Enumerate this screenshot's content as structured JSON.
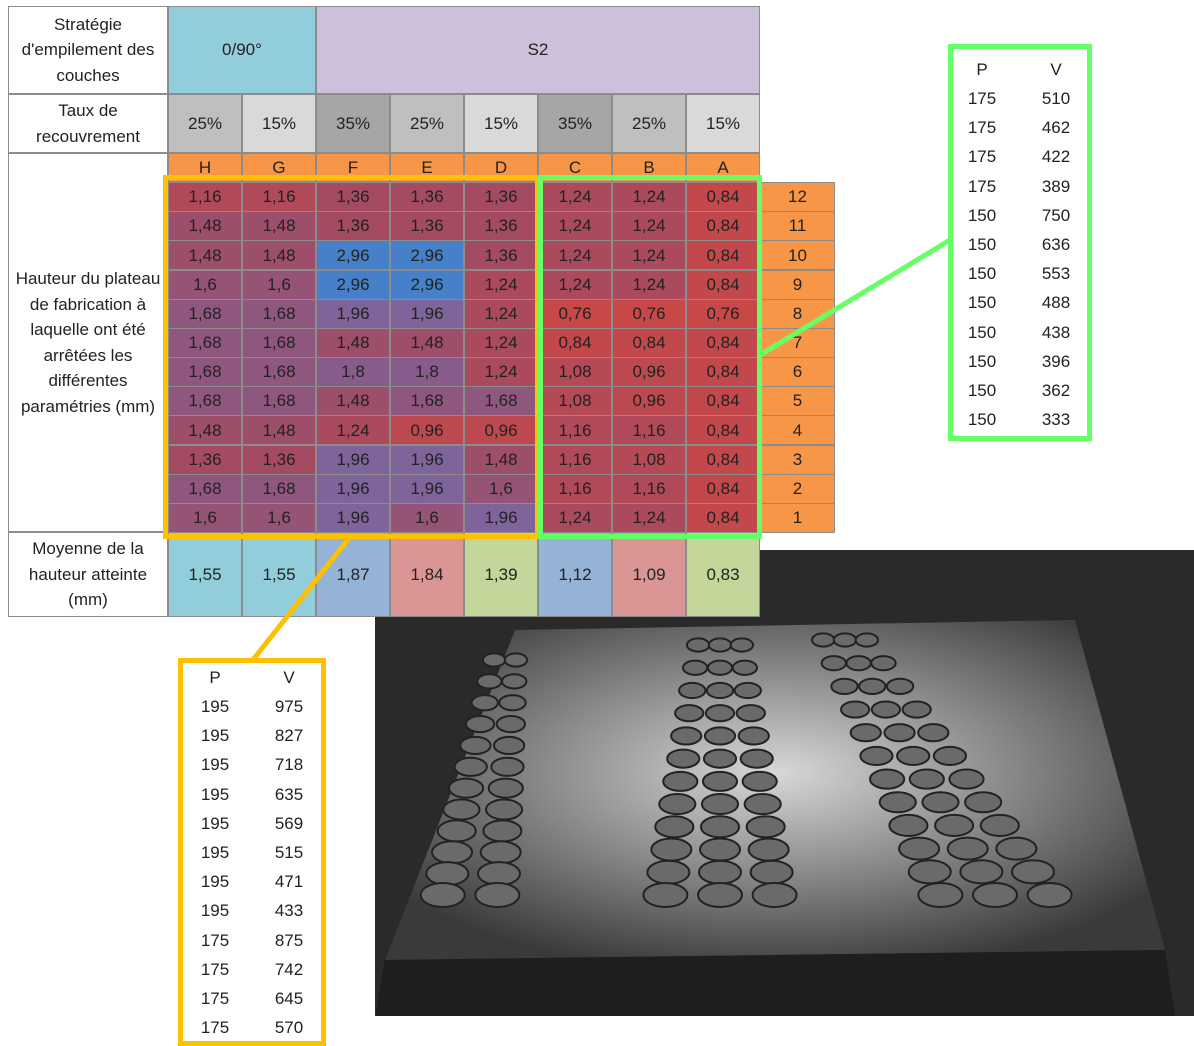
{
  "table": {
    "strategy_label": "Stratégie d'empilement des couches",
    "strategies": [
      "0/90°",
      "S2"
    ],
    "overlap_label": "Taux de recouvrement",
    "overlaps": [
      "25%",
      "15%",
      "35%",
      "25%",
      "15%",
      "35%",
      "25%",
      "15%"
    ],
    "letters": [
      "H",
      "G",
      "F",
      "E",
      "D",
      "C",
      "B",
      "A"
    ],
    "row_label": "Hauteur du plateau de fabrication à laquelle ont été arrêtées les différentes paramétries (mm)",
    "rows": [
      {
        "number": "12",
        "cells": [
          "1,16",
          "1,16",
          "1,36",
          "1,36",
          "1,36",
          "1,24",
          "1,24",
          "0,84"
        ]
      },
      {
        "number": "11",
        "cells": [
          "1,48",
          "1,48",
          "1,36",
          "1,36",
          "1,36",
          "1,24",
          "1,24",
          "0,84"
        ]
      },
      {
        "number": "10",
        "cells": [
          "1,48",
          "1,48",
          "2,96",
          "2,96",
          "1,36",
          "1,24",
          "1,24",
          "0,84"
        ]
      },
      {
        "number": "9",
        "cells": [
          "1,6",
          "1,6",
          "2,96",
          "2,96",
          "1,24",
          "1,24",
          "1,24",
          "0,84"
        ]
      },
      {
        "number": "8",
        "cells": [
          "1,68",
          "1,68",
          "1,96",
          "1,96",
          "1,24",
          "0,76",
          "0,76",
          "0,76"
        ]
      },
      {
        "number": "7",
        "cells": [
          "1,68",
          "1,68",
          "1,48",
          "1,48",
          "1,24",
          "0,84",
          "0,84",
          "0,84"
        ]
      },
      {
        "number": "6",
        "cells": [
          "1,68",
          "1,68",
          "1,8",
          "1,8",
          "1,24",
          "1,08",
          "0,96",
          "0,84"
        ]
      },
      {
        "number": "5",
        "cells": [
          "1,68",
          "1,68",
          "1,48",
          "1,68",
          "1,68",
          "1,08",
          "0,96",
          "0,84"
        ]
      },
      {
        "number": "4",
        "cells": [
          "1,48",
          "1,48",
          "1,24",
          "0,96",
          "0,96",
          "1,16",
          "1,16",
          "0,84"
        ]
      },
      {
        "number": "3",
        "cells": [
          "1,36",
          "1,36",
          "1,96",
          "1,96",
          "1,48",
          "1,16",
          "1,08",
          "0,84"
        ]
      },
      {
        "number": "2",
        "cells": [
          "1,68",
          "1,68",
          "1,96",
          "1,96",
          "1,6",
          "1,16",
          "1,16",
          "0,84"
        ]
      },
      {
        "number": "1",
        "cells": [
          "1,6",
          "1,6",
          "1,96",
          "1,6",
          "1,96",
          "1,24",
          "1,24",
          "0,84"
        ]
      }
    ],
    "average_label": "Moyenne de la hauteur atteinte (mm)",
    "averages": [
      "1,55",
      "1,55",
      "1,87",
      "1,84",
      "1,39",
      "1,12",
      "1,09",
      "0,83"
    ]
  },
  "green_params": {
    "headers": [
      "P",
      "V"
    ],
    "rows": [
      [
        "175",
        "510"
      ],
      [
        "175",
        "462"
      ],
      [
        "175",
        "422"
      ],
      [
        "175",
        "389"
      ],
      [
        "150",
        "750"
      ],
      [
        "150",
        "636"
      ],
      [
        "150",
        "553"
      ],
      [
        "150",
        "488"
      ],
      [
        "150",
        "438"
      ],
      [
        "150",
        "396"
      ],
      [
        "150",
        "362"
      ],
      [
        "150",
        "333"
      ]
    ]
  },
  "orange_params": {
    "headers": [
      "P",
      "V"
    ],
    "rows": [
      [
        "195",
        "975"
      ],
      [
        "195",
        "827"
      ],
      [
        "195",
        "718"
      ],
      [
        "195",
        "635"
      ],
      [
        "195",
        "569"
      ],
      [
        "195",
        "515"
      ],
      [
        "195",
        "471"
      ],
      [
        "195",
        "433"
      ],
      [
        "175",
        "875"
      ],
      [
        "175",
        "742"
      ],
      [
        "175",
        "645"
      ],
      [
        "175",
        "570"
      ]
    ]
  }
}
